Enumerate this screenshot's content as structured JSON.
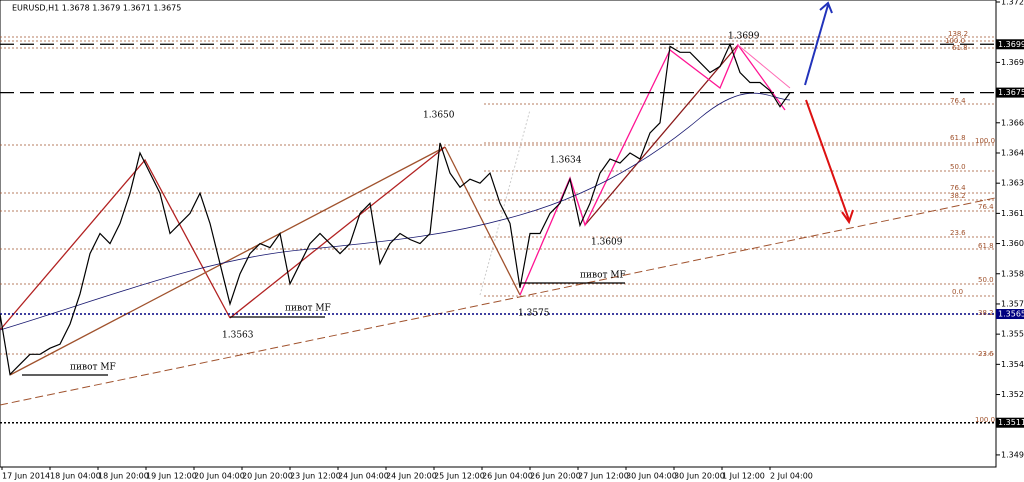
{
  "chart_data": {
    "type": "line",
    "header": "EURUSD,H1  1.3678 1.3679 1.3671 1.3675",
    "color": "#000000",
    "values": [
      1.3565,
      1.3535,
      1.354,
      1.3545,
      1.3545,
      1.3548,
      1.355,
      1.356,
      1.3575,
      1.3595,
      1.3605,
      1.36,
      1.361,
      1.3625,
      1.3645,
      1.3635,
      1.3625,
      1.3605,
      1.361,
      1.3615,
      1.3625,
      1.361,
      1.359,
      1.357,
      1.3585,
      1.3595,
      1.36,
      1.3598,
      1.3605,
      1.358,
      1.359,
      1.36,
      1.3605,
      1.36,
      1.3595,
      1.36,
      1.3615,
      1.362,
      1.359,
      1.36,
      1.3605,
      1.3602,
      1.36,
      1.3605,
      1.365,
      1.3635,
      1.3628,
      1.3632,
      1.363,
      1.3635,
      1.362,
      1.361,
      1.3578,
      1.3605,
      1.3605,
      1.3615,
      1.362,
      1.3632,
      1.3609,
      1.362,
      1.3635,
      1.3642,
      1.364,
      1.3645,
      1.3642,
      1.3655,
      1.366,
      1.3698,
      1.3695,
      1.3695,
      1.369,
      1.3685,
      1.3688,
      1.3699,
      1.3685,
      1.368,
      1.368,
      1.3676,
      1.3668,
      1.3675
    ],
    "ylim": [
      1.3489,
      1.3721
    ],
    "yticks": [
      {
        "value": 1.372,
        "label": "1.3720"
      },
      {
        "value": 1.369,
        "label": "1.3690"
      },
      {
        "value": 1.366,
        "label": "1.3660"
      },
      1.3645,
      {
        "value": 1.363,
        "label": "1.3630"
      },
      1.3615,
      {
        "value": 1.36,
        "label": "1.3600"
      },
      1.3585,
      {
        "value": 1.357,
        "label": "1.3570"
      },
      1.3555,
      {
        "value": 1.354,
        "label": "1.3540"
      },
      1.3525,
      1.3495
    ],
    "price_levels": [
      1.3699,
      1.3675,
      1.3565,
      1.3511
    ],
    "level_colors": [
      "#000000",
      "#000000",
      "#000080",
      "#000000"
    ],
    "time_labels": [
      "17 Jun 2014",
      "18 Jun 04:00",
      "18 Jun 20:00",
      "19 Jun 12:00",
      "20 Jun 04:00",
      "20 Jun 20:00",
      "23 Jun 12:00",
      "24 Jun 04:00",
      "24 Jun 20:00",
      "25 Jun 12:00",
      "26 Jun 04:00",
      "26 Jun 20:00",
      "27 Jun 12:00",
      "30 Jun 04:00",
      "30 Jun 20:00",
      "1 Jul 12:00",
      "2 Jul 04:00"
    ],
    "annotations": [
      "1.3699",
      "1.3650",
      "1.3634",
      "1.3609",
      "1.3575",
      "1.3563",
      "пивот MF",
      "пивот MF",
      "пивот MF"
    ],
    "fib_labels": [
      "138.2",
      "100.0",
      "61.8",
      "76.4",
      "61.8",
      "100.0",
      "50.0",
      "76.4",
      "38.2",
      "76.4",
      "23.6",
      "61.8",
      "50.0",
      "0.0",
      "38.2",
      "23.6",
      "100.0"
    ]
  }
}
